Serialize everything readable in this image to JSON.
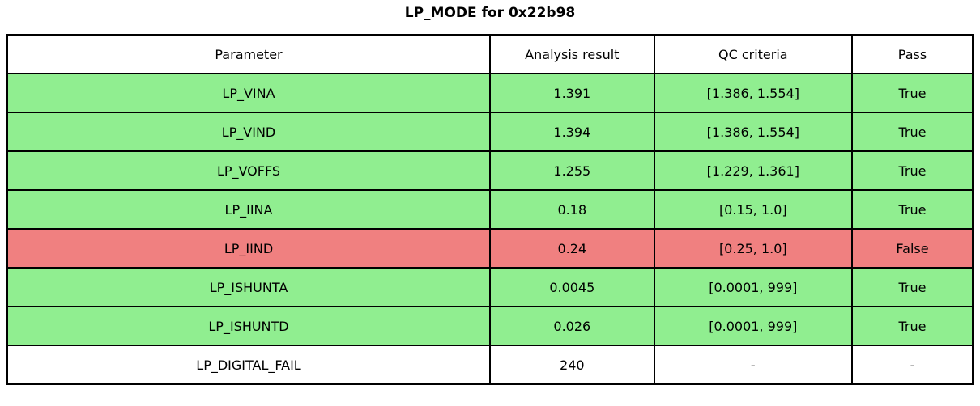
{
  "title": "LP_MODE for 0x22b98",
  "chart_data": {
    "type": "table",
    "title": "LP_MODE for 0x22b98",
    "columns": [
      "Parameter",
      "Analysis result",
      "QC criteria",
      "Pass"
    ],
    "rows": [
      {
        "parameter": "LP_VINA",
        "result": "1.391",
        "criteria": "[1.386, 1.554]",
        "pass": "True",
        "status": "pass"
      },
      {
        "parameter": "LP_VIND",
        "result": "1.394",
        "criteria": "[1.386, 1.554]",
        "pass": "True",
        "status": "pass"
      },
      {
        "parameter": "LP_VOFFS",
        "result": "1.255",
        "criteria": "[1.229, 1.361]",
        "pass": "True",
        "status": "pass"
      },
      {
        "parameter": "LP_IINA",
        "result": "0.18",
        "criteria": "[0.15, 1.0]",
        "pass": "True",
        "status": "pass"
      },
      {
        "parameter": "LP_IIND",
        "result": "0.24",
        "criteria": "[0.25, 1.0]",
        "pass": "False",
        "status": "fail"
      },
      {
        "parameter": "LP_ISHUNTA",
        "result": "0.0045",
        "criteria": "[0.0001, 999]",
        "pass": "True",
        "status": "pass"
      },
      {
        "parameter": "LP_ISHUNTD",
        "result": "0.026",
        "criteria": "[0.0001, 999]",
        "pass": "True",
        "status": "pass"
      },
      {
        "parameter": "LP_DIGITAL_FAIL",
        "result": "240",
        "criteria": "-",
        "pass": "-",
        "status": "none"
      }
    ],
    "status_colors": {
      "pass": "#90ee90",
      "fail": "#f08080",
      "none": "#ffffff"
    },
    "layout": {
      "header_background": "#ffffff",
      "border_color": "#000000"
    }
  }
}
